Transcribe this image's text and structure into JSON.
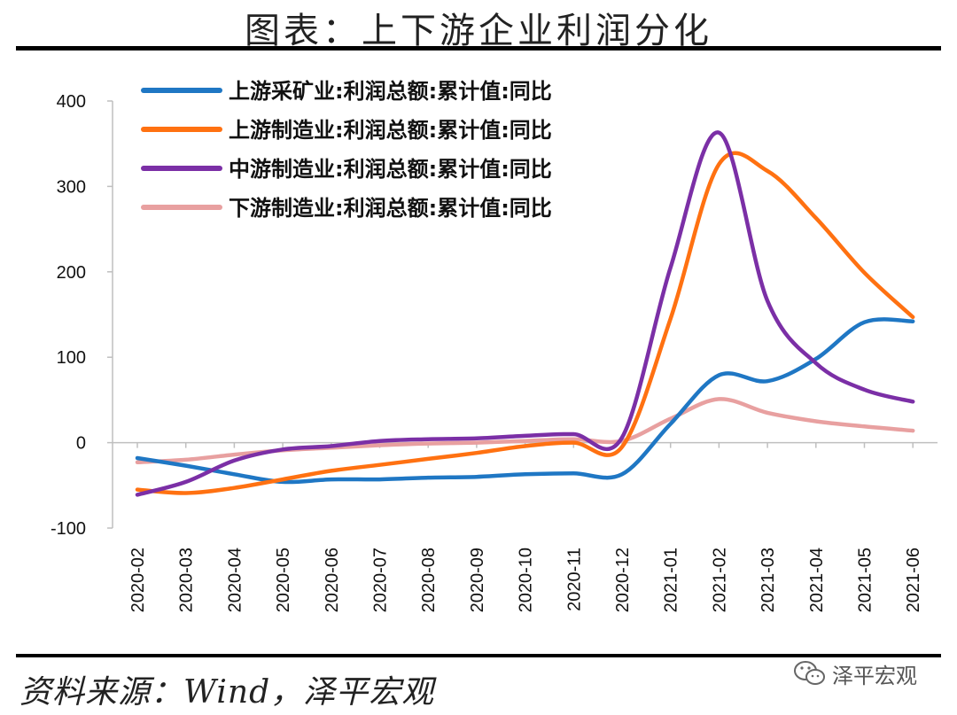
{
  "title": "图表：上下游企业利润分化",
  "source": "资料来源：Wind，泽平宏观",
  "watermark": "泽平宏观",
  "watermark_icon": "wechat-icon",
  "chart_data": {
    "type": "line",
    "title": "",
    "xlabel": "",
    "ylabel": "",
    "ylim": [
      -100,
      400
    ],
    "yticks": [
      -100,
      0,
      100,
      200,
      300,
      400
    ],
    "grid": false,
    "legend_position": "top-left",
    "x": [
      "2020-02",
      "2020-03",
      "2020-04",
      "2020-05",
      "2020-06",
      "2020-07",
      "2020-08",
      "2020-09",
      "2020-10",
      "2020-11",
      "2020-12",
      "2021-01",
      "2021-02",
      "2021-03",
      "2021-04",
      "2021-05",
      "2021-06"
    ],
    "series": [
      {
        "name": "上游采矿业:利润总额:累计值:同比",
        "color": "#1f77c4",
        "values": [
          -18,
          -27,
          -37,
          -46,
          -43,
          -43,
          -41,
          -40,
          -37,
          -36,
          -37,
          22,
          79,
          72,
          98,
          141,
          142
        ]
      },
      {
        "name": "上游制造业:利润总额:累计值:同比",
        "color": "#ff7111",
        "values": [
          -55,
          -59,
          -53,
          -43,
          -33,
          -26,
          -19,
          -12,
          -4,
          0,
          -5,
          145,
          326,
          318,
          263,
          199,
          147
        ]
      },
      {
        "name": "中游制造业:利润总额:累计值:同比",
        "color": "#7b2fa6",
        "values": [
          -61,
          -46,
          -21,
          -8,
          -4,
          2,
          4,
          5,
          8,
          10,
          6,
          205,
          363,
          166,
          93,
          62,
          48
        ]
      },
      {
        "name": "下游制造业:利润总额:累计值:同比",
        "color": "#e8a0a0",
        "values": [
          -23,
          -20,
          -14,
          -9,
          -6,
          -3,
          -1,
          0,
          2,
          4,
          2,
          28,
          51,
          35,
          25,
          19,
          14
        ]
      }
    ]
  }
}
